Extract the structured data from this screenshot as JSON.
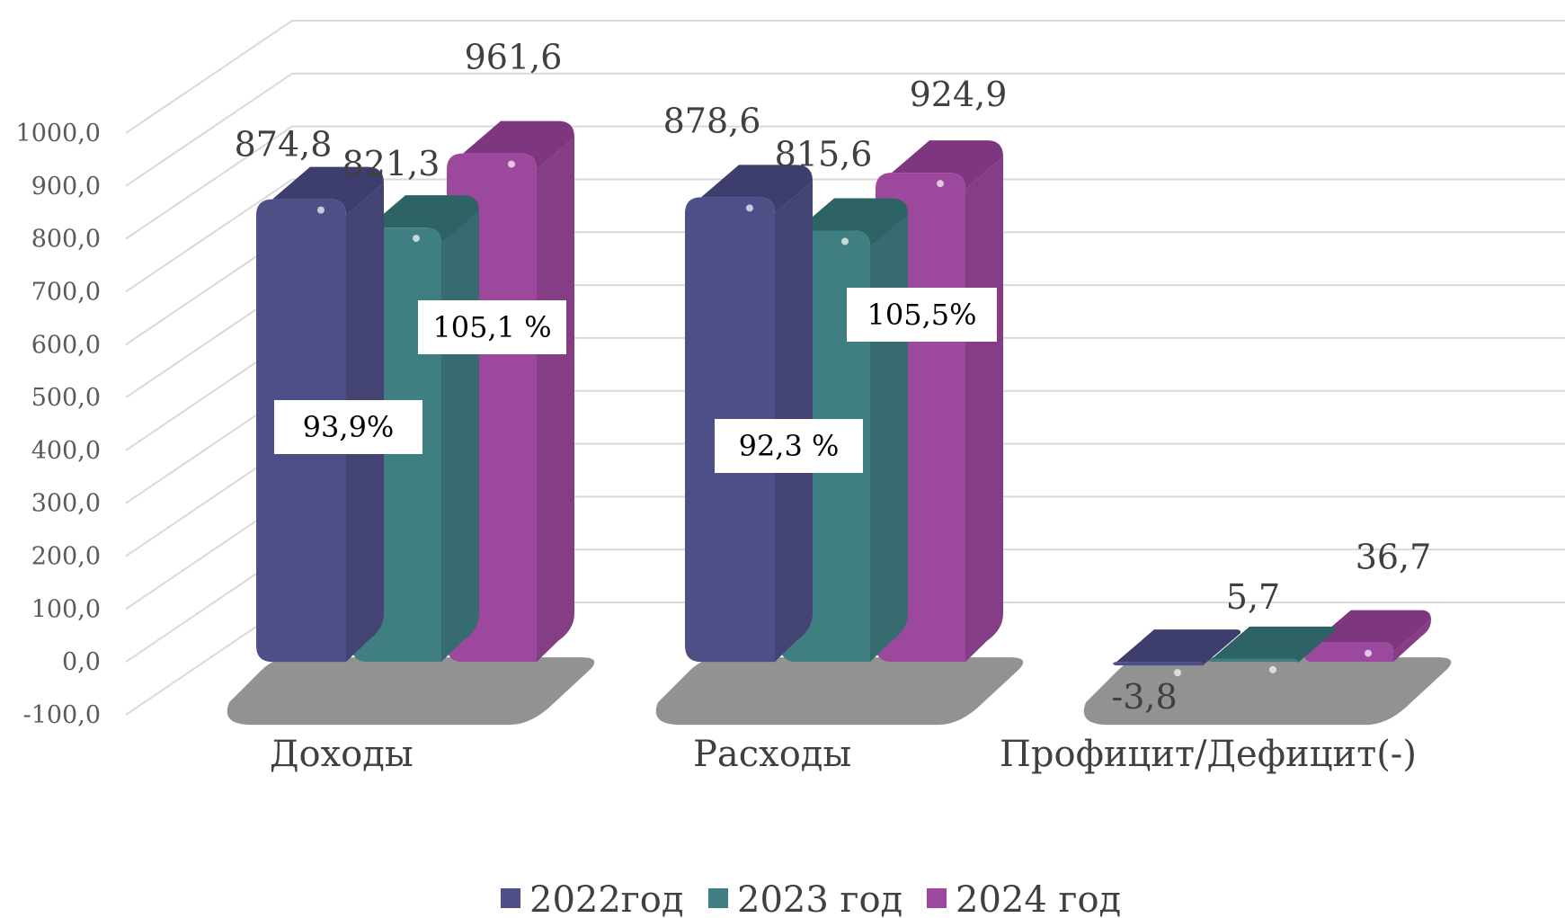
{
  "chart_data": {
    "type": "bar",
    "title": "",
    "xlabel": "",
    "ylabel": "",
    "categories": [
      "Доходы",
      "Расходы",
      "Профицит/Дефицит(-)"
    ],
    "series": [
      {
        "name": "2022год",
        "values": [
          874.8,
          878.6,
          -3.8
        ],
        "labels": [
          "874,8",
          "878,6",
          "-3,8"
        ]
      },
      {
        "name": "2023 год",
        "values": [
          821.3,
          815.6,
          5.7
        ],
        "labels": [
          "821,3",
          "815,6",
          "5,7"
        ]
      },
      {
        "name": "2024 год",
        "values": [
          961.6,
          924.9,
          36.7
        ],
        "labels": [
          "961,6",
          "924,9",
          "36,7"
        ]
      }
    ],
    "ylim": [
      -100,
      1000
    ],
    "yticks": [
      "-100,0",
      "0,0",
      "100,0",
      "200,0",
      "300,0",
      "400,0",
      "500,0",
      "600,0",
      "700,0",
      "800,0",
      "900,0",
      "1000,0"
    ],
    "grid": true,
    "legend": "bottom",
    "annotations": [
      {
        "category": 0,
        "series": 0,
        "text": "93,9%"
      },
      {
        "category": 0,
        "series": 2,
        "text": "105,1 %"
      },
      {
        "category": 1,
        "series": 0,
        "text": "92,3 %"
      },
      {
        "category": 1,
        "series": 2,
        "text": "105,5%"
      }
    ],
    "colors": {
      "series": [
        "#4f4f88",
        "#3f7f82",
        "#9c489c"
      ],
      "series_top": [
        "#3d3d6e",
        "#2e6366",
        "#7e377f"
      ],
      "grid": "#d9d9d9",
      "shadow": "#8c8c8c"
    }
  }
}
